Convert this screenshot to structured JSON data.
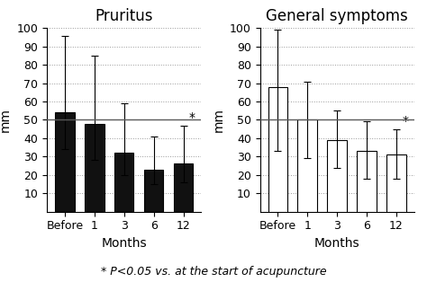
{
  "chart_data": [
    {
      "type": "bar",
      "title": "Pruritus",
      "xlabel": "Months",
      "ylabel": "mm",
      "categories": [
        "Before",
        "1",
        "3",
        "6",
        "12"
      ],
      "values": [
        54,
        48,
        32,
        23,
        26
      ],
      "error_upper": [
        42,
        37,
        27,
        18,
        21
      ],
      "error_lower": [
        20,
        20,
        12,
        8,
        10
      ],
      "color": "#111111",
      "reference_line": 50,
      "annotations": [
        {
          "text": "*",
          "category": "12"
        }
      ],
      "ylim": [
        0,
        100
      ],
      "yticks": [
        10,
        20,
        30,
        40,
        50,
        60,
        70,
        80,
        90,
        100
      ],
      "grid": true
    },
    {
      "type": "bar",
      "title": "General symptoms",
      "xlabel": "Months",
      "ylabel": "mm",
      "categories": [
        "Before",
        "1",
        "3",
        "6",
        "12"
      ],
      "values": [
        68,
        50,
        39,
        33,
        31
      ],
      "error_upper": [
        31,
        21,
        16,
        16,
        14
      ],
      "error_lower": [
        35,
        21,
        15,
        15,
        13
      ],
      "color": "#ffffff",
      "reference_line": 50,
      "annotations": [
        {
          "text": "*",
          "category": "12"
        }
      ],
      "ylim": [
        0,
        100
      ],
      "yticks": [
        10,
        20,
        30,
        40,
        50,
        60,
        70,
        80,
        90,
        100
      ],
      "grid": true
    }
  ],
  "footer": "* P<0.05 vs. at the start of acupuncture"
}
